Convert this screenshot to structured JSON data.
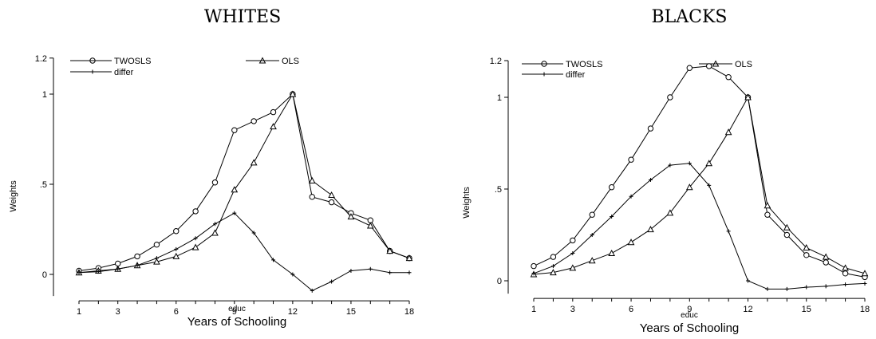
{
  "chart_data": [
    {
      "type": "line",
      "title": "WHITES",
      "xlabel": "Years of Schooling",
      "xvar": "educ",
      "ylabel": "Weights",
      "xlim": [
        1,
        18
      ],
      "ylim": [
        -0.12,
        1.2
      ],
      "xticks": [
        "1",
        "3",
        "6",
        "9",
        "12",
        "15",
        "18"
      ],
      "yticks": [
        "0",
        ".5",
        "1",
        "1.2"
      ],
      "legend": "top-left",
      "x": [
        1,
        2,
        3,
        4,
        5,
        6,
        7,
        8,
        9,
        10,
        11,
        12,
        13,
        14,
        15,
        16,
        17,
        18
      ],
      "series": [
        {
          "name": "TWOSLS",
          "marker": "circle",
          "values": [
            0.02,
            0.035,
            0.06,
            0.1,
            0.165,
            0.24,
            0.35,
            0.51,
            0.8,
            0.85,
            0.9,
            1.0,
            0.43,
            0.4,
            0.34,
            0.3,
            0.13,
            0.09
          ]
        },
        {
          "name": "OLS",
          "marker": "triangle",
          "values": [
            0.01,
            0.02,
            0.03,
            0.05,
            0.07,
            0.1,
            0.15,
            0.23,
            0.47,
            0.62,
            0.82,
            1.0,
            0.52,
            0.44,
            0.32,
            0.27,
            0.13,
            0.09
          ]
        },
        {
          "name": "differ",
          "marker": "plus",
          "values": [
            0.01,
            0.015,
            0.03,
            0.05,
            0.09,
            0.14,
            0.2,
            0.28,
            0.34,
            0.23,
            0.08,
            0.0,
            -0.09,
            -0.04,
            0.02,
            0.03,
            0.01,
            0.01
          ]
        }
      ]
    },
    {
      "type": "line",
      "title": "BLACKS",
      "xlabel": "Years of Schooling",
      "xvar": "educ",
      "ylabel": "Weights",
      "xlim": [
        1,
        18
      ],
      "ylim": [
        -0.07,
        1.2
      ],
      "xticks": [
        "1",
        "3",
        "6",
        "9",
        "12",
        "15",
        "18"
      ],
      "yticks": [
        "0",
        ".5",
        "1",
        "1.2"
      ],
      "legend": "top-left",
      "x": [
        1,
        2,
        3,
        4,
        5,
        6,
        7,
        8,
        9,
        10,
        11,
        12,
        13,
        14,
        15,
        16,
        17,
        18
      ],
      "series": [
        {
          "name": "TWOSLS",
          "marker": "circle",
          "values": [
            0.08,
            0.13,
            0.22,
            0.36,
            0.51,
            0.66,
            0.83,
            1.0,
            1.16,
            1.17,
            1.11,
            1.0,
            0.36,
            0.25,
            0.14,
            0.1,
            0.04,
            0.02
          ]
        },
        {
          "name": "OLS",
          "marker": "triangle",
          "values": [
            0.035,
            0.045,
            0.07,
            0.11,
            0.15,
            0.21,
            0.28,
            0.37,
            0.51,
            0.64,
            0.81,
            1.0,
            0.41,
            0.29,
            0.18,
            0.13,
            0.07,
            0.04
          ]
        },
        {
          "name": "differ",
          "marker": "plus",
          "values": [
            0.04,
            0.08,
            0.15,
            0.25,
            0.35,
            0.46,
            0.55,
            0.63,
            0.64,
            0.52,
            0.27,
            0.0,
            -0.045,
            -0.045,
            -0.035,
            -0.03,
            -0.02,
            -0.015
          ]
        }
      ]
    }
  ]
}
